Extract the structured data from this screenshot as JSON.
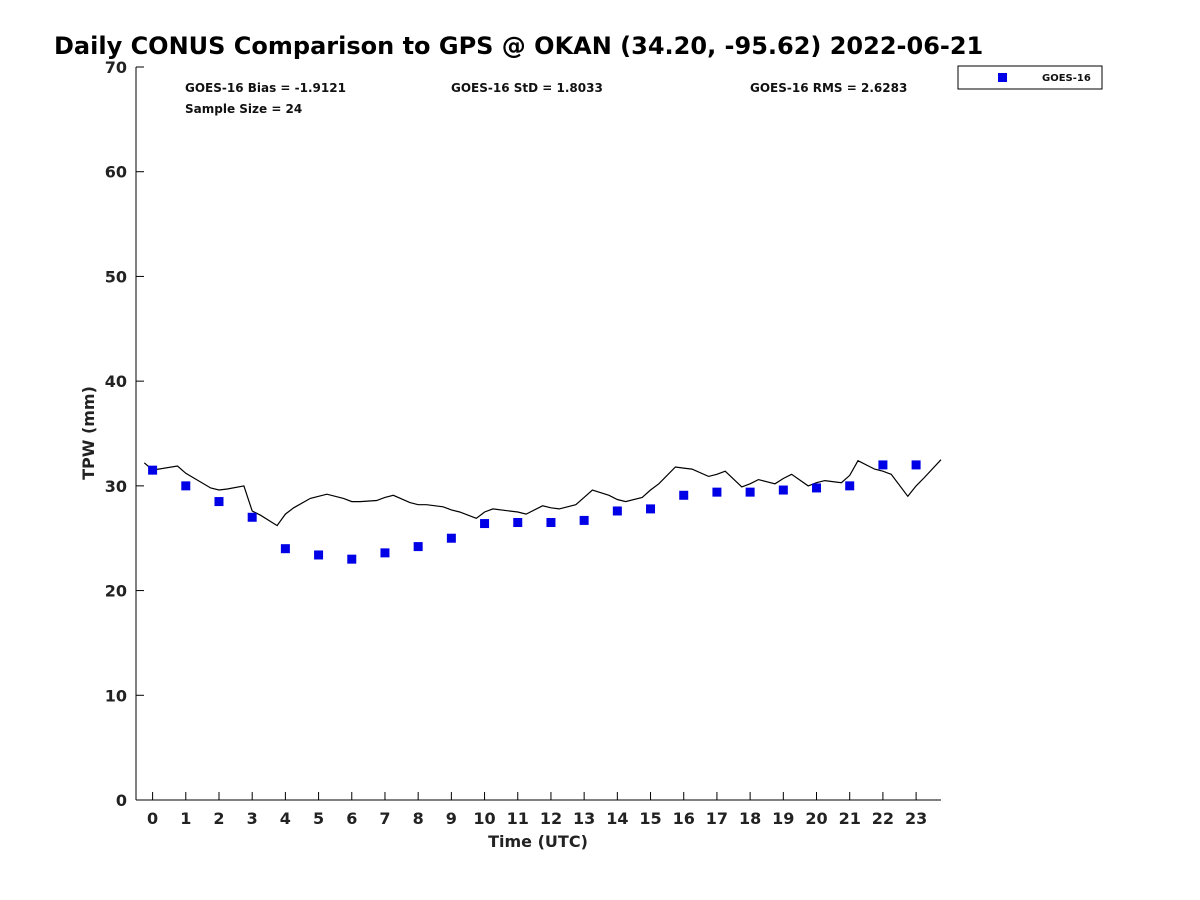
{
  "chart_data": {
    "type": "scatter",
    "title": "Daily CONUS Comparison to GPS @ OKAN (34.20, -95.62) 2022-06-21",
    "xlabel": "Time (UTC)",
    "ylabel": "TPW (mm)",
    "xlim": [
      -0.5,
      23.75
    ],
    "ylim": [
      0,
      70
    ],
    "x_ticks": [
      0,
      1,
      2,
      3,
      4,
      5,
      6,
      7,
      8,
      9,
      10,
      11,
      12,
      13,
      14,
      15,
      16,
      17,
      18,
      19,
      20,
      21,
      22,
      23
    ],
    "y_ticks": [
      0,
      10,
      20,
      30,
      40,
      50,
      60,
      70
    ],
    "grid": false,
    "legend_position": "top-right-outside",
    "stats": {
      "bias": "GOES-16 Bias = -1.9121",
      "std": "GOES-16 StD = 1.8033",
      "rms": "GOES-16 RMS = 2.6283",
      "sample": "Sample Size = 24"
    },
    "series": [
      {
        "name": "GOES-16",
        "kind": "markers",
        "marker": "square",
        "color": "#0000e6",
        "x": [
          0,
          1,
          2,
          3,
          4,
          5,
          6,
          7,
          8,
          9,
          10,
          11,
          12,
          13,
          14,
          15,
          16,
          17,
          18,
          19,
          20,
          21,
          22,
          23
        ],
        "y": [
          31.5,
          30.0,
          28.5,
          27.0,
          24.0,
          23.4,
          23.0,
          23.6,
          24.2,
          25.0,
          26.4,
          26.5,
          26.5,
          26.7,
          27.6,
          27.8,
          29.1,
          29.4,
          29.4,
          29.6,
          29.8,
          30.0,
          32.0,
          32.0
        ]
      },
      {
        "kind": "line",
        "color": "#000000",
        "x": [
          -0.25,
          0,
          0.75,
          1,
          1.75,
          2,
          2.25,
          2.75,
          3,
          3.25,
          3.75,
          4,
          4.25,
          4.75,
          5,
          5.25,
          5.75,
          6,
          6.25,
          6.75,
          7,
          7.25,
          7.75,
          8,
          8.25,
          8.75,
          9,
          9.25,
          9.75,
          10,
          10.25,
          10.75,
          11,
          11.25,
          11.75,
          12,
          12.25,
          12.75,
          13,
          13.25,
          13.75,
          14,
          14.25,
          14.75,
          15,
          15.25,
          15.75,
          16,
          16.25,
          16.75,
          17,
          17.25,
          17.75,
          18,
          18.25,
          18.75,
          19,
          19.25,
          19.75,
          20,
          20.25,
          20.75,
          21,
          21.25,
          21.75,
          22,
          22.25,
          22.75,
          23,
          23.25,
          23.75
        ],
        "y": [
          32.2,
          31.5,
          31.9,
          31.2,
          29.8,
          29.6,
          29.7,
          30.0,
          27.6,
          27.2,
          26.2,
          27.3,
          27.9,
          28.8,
          29.0,
          29.2,
          28.8,
          28.5,
          28.5,
          28.6,
          28.9,
          29.1,
          28.4,
          28.2,
          28.2,
          28.0,
          27.7,
          27.5,
          26.9,
          27.5,
          27.8,
          27.6,
          27.5,
          27.3,
          28.1,
          27.9,
          27.8,
          28.2,
          28.9,
          29.6,
          29.1,
          28.7,
          28.5,
          28.9,
          29.6,
          30.2,
          31.8,
          31.7,
          31.6,
          30.9,
          31.1,
          31.4,
          29.9,
          30.2,
          30.6,
          30.2,
          30.7,
          31.1,
          30.0,
          30.3,
          30.5,
          30.3,
          31.0,
          32.4,
          31.6,
          31.4,
          31.1,
          29.0,
          30.0,
          30.8,
          32.5
        ]
      }
    ]
  }
}
